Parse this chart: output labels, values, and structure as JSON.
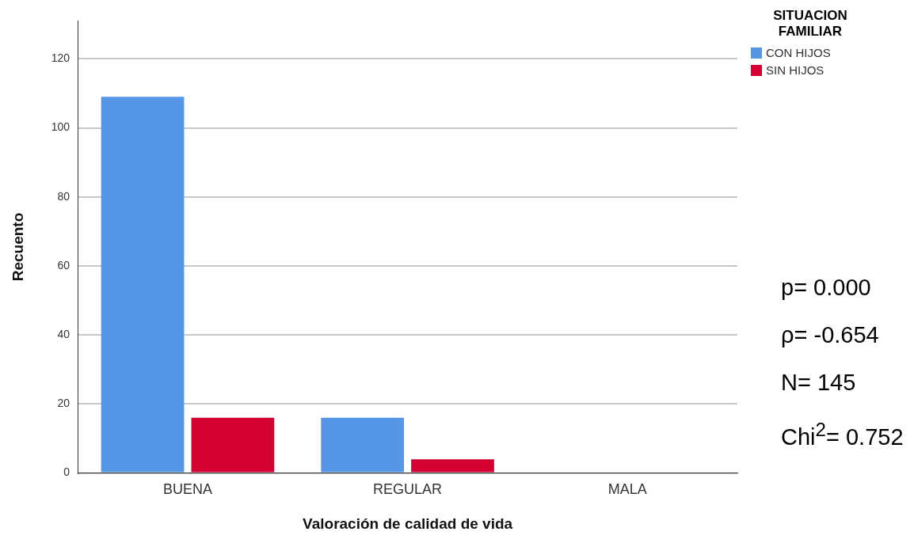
{
  "chart_data": {
    "type": "bar",
    "xlabel": "Valoración de calidad de vida",
    "ylabel": "Recuento",
    "legend_title": "SITUACION FAMILIAR",
    "categories": [
      "BUENA",
      "REGULAR",
      "MALA"
    ],
    "series": [
      {
        "name": "CON HIJOS",
        "color": "#5596e6",
        "values": [
          109,
          16,
          0
        ]
      },
      {
        "name": "SIN HIJOS",
        "color": "#d50032",
        "values": [
          16,
          4,
          0
        ]
      }
    ],
    "ylim": [
      0,
      131
    ],
    "yticks": [
      0,
      20,
      40,
      60,
      80,
      100,
      120
    ],
    "grid": "y",
    "legend": "top right",
    "annotations": [
      "p= 0.000",
      "ρ= -0.654",
      "N= 145",
      "Chi$^{2}$= 0.752"
    ]
  }
}
